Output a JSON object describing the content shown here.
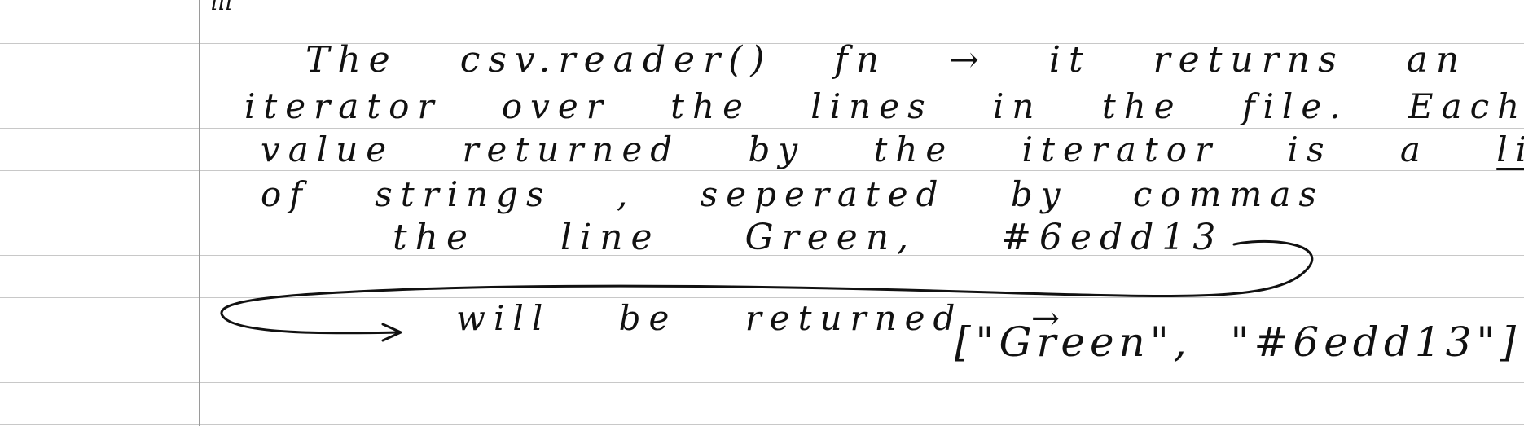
{
  "note": {
    "lines": [
      {
        "text": "The csv.reader() fn → it returns an"
      },
      {
        "text": "iterator over the lines in the file. Each"
      },
      {
        "before": "value returned by the iterator is a ",
        "underlined": "list"
      },
      {
        "text": "of strings , seperated by commas"
      },
      {
        "text": "the line Green, #6edd13"
      },
      {
        "text": "will be returned →"
      }
    ],
    "result": "[\"Green\", \"#6edd13\"]"
  },
  "colors": {
    "ink": "#111111",
    "rule": "#c8c8c8",
    "margin": "#9a9a9a",
    "paper": "#ffffff"
  }
}
